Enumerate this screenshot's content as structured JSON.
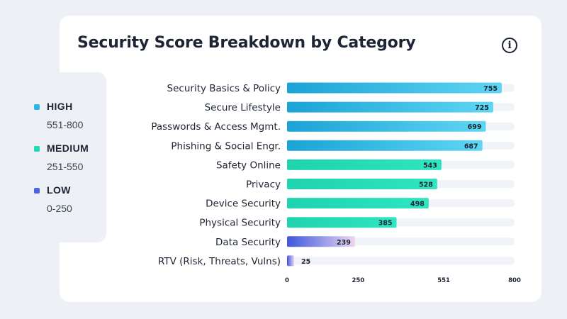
{
  "title": "Security Score Breakdown by Category",
  "info_icon": "info-circle-icon",
  "legend": [
    {
      "name": "HIGH",
      "range": "551-800",
      "color": "#29b6e6"
    },
    {
      "name": "MEDIUM",
      "range": "251-550",
      "color": "#1fd9b0"
    },
    {
      "name": "LOW",
      "range": "0-250",
      "color": "#4a63e0"
    }
  ],
  "chart_data": {
    "type": "bar",
    "orientation": "horizontal",
    "title": "Security Score Breakdown by Category",
    "categories": [
      "Security Basics & Policy",
      "Secure Lifestyle",
      "Passwords & Access Mgmt.",
      "Phishing & Social Engr.",
      "Safety Online",
      "Privacy",
      "Device Security",
      "Physical Security",
      "Data Security",
      "RTV (Risk, Threats, Vulns)"
    ],
    "values": [
      755,
      725,
      699,
      687,
      543,
      528,
      498,
      385,
      239,
      25
    ],
    "levels": [
      "HIGH",
      "HIGH",
      "HIGH",
      "HIGH",
      "MEDIUM",
      "MEDIUM",
      "MEDIUM",
      "MEDIUM",
      "LOW",
      "LOW"
    ],
    "xlim": [
      0,
      800
    ],
    "xticks": [
      0,
      250,
      551,
      800
    ],
    "xtick_labels": [
      "0",
      "250",
      "551",
      "800"
    ],
    "grid": false,
    "legend_placement": "left"
  }
}
